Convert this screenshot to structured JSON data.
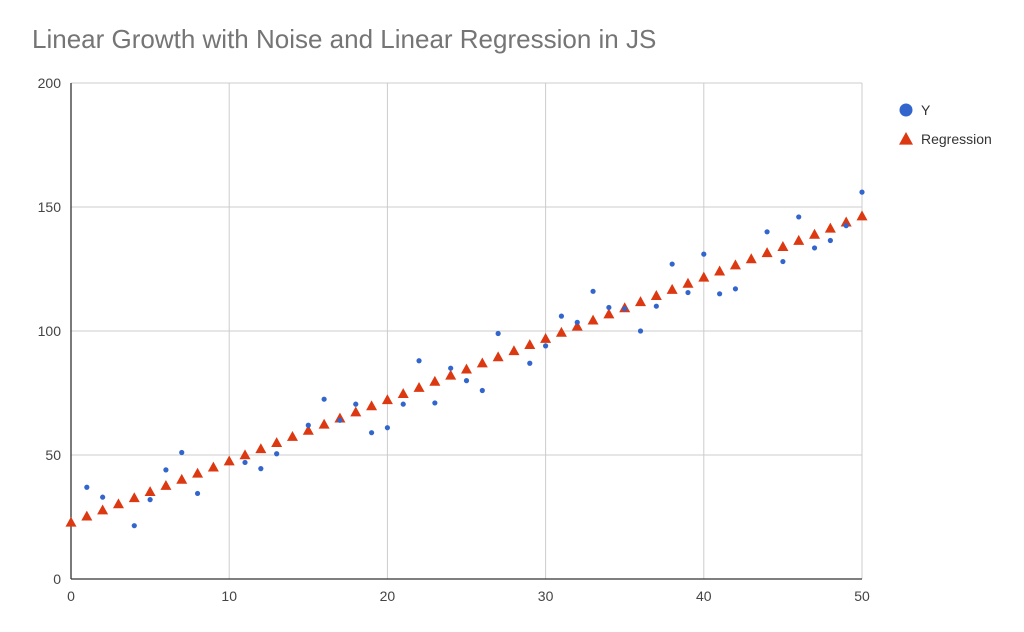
{
  "chart_data": {
    "type": "scatter",
    "title": "Linear Growth with Noise and Linear Regression in JS",
    "xlabel": "",
    "ylabel": "",
    "xlim": [
      0,
      50
    ],
    "ylim": [
      0,
      200
    ],
    "x_ticks": [
      0,
      10,
      20,
      30,
      40,
      50
    ],
    "y_ticks": [
      0,
      50,
      100,
      150,
      200
    ],
    "grid": true,
    "legend_position": "right",
    "series": [
      {
        "name": "Y",
        "marker": "circle",
        "color": "#3366cc",
        "points": [
          [
            1,
            37
          ],
          [
            2,
            33
          ],
          [
            4,
            21.5
          ],
          [
            5,
            32
          ],
          [
            6,
            44
          ],
          [
            7,
            51
          ],
          [
            8,
            34.5
          ],
          [
            11,
            47
          ],
          [
            12,
            44.5
          ],
          [
            13,
            50.5
          ],
          [
            15,
            62
          ],
          [
            16,
            72.5
          ],
          [
            17,
            64
          ],
          [
            18,
            70.5
          ],
          [
            19,
            59
          ],
          [
            20,
            61
          ],
          [
            21,
            70.5
          ],
          [
            22,
            88
          ],
          [
            23,
            71
          ],
          [
            24,
            85
          ],
          [
            25,
            80
          ],
          [
            26,
            76
          ],
          [
            27,
            99
          ],
          [
            29,
            87
          ],
          [
            30,
            94
          ],
          [
            31,
            106
          ],
          [
            32,
            103.5
          ],
          [
            33,
            116
          ],
          [
            34,
            109.5
          ],
          [
            35,
            109
          ],
          [
            36,
            100
          ],
          [
            37,
            110
          ],
          [
            38,
            127
          ],
          [
            39,
            115.5
          ],
          [
            40,
            131
          ],
          [
            41,
            115
          ],
          [
            42,
            117
          ],
          [
            44,
            140
          ],
          [
            45,
            128
          ],
          [
            46,
            146
          ],
          [
            47,
            133.5
          ],
          [
            48,
            136.5
          ],
          [
            49,
            142.5
          ],
          [
            50,
            156
          ]
        ]
      },
      {
        "name": "Regression",
        "marker": "triangle",
        "color": "#dc3912",
        "intercept": 22.9,
        "slope": 2.47,
        "x": [
          0,
          1,
          2,
          3,
          4,
          5,
          6,
          7,
          8,
          9,
          10,
          11,
          12,
          13,
          14,
          15,
          16,
          17,
          18,
          19,
          20,
          21,
          22,
          23,
          24,
          25,
          26,
          27,
          28,
          29,
          30,
          31,
          32,
          33,
          34,
          35,
          36,
          37,
          38,
          39,
          40,
          41,
          42,
          43,
          44,
          45,
          46,
          47,
          48,
          49,
          50
        ]
      }
    ]
  }
}
